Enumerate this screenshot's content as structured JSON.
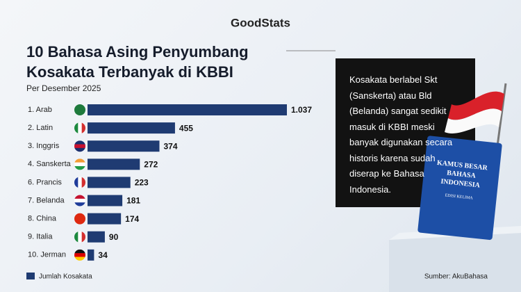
{
  "brand": "GoodStats",
  "chart_data": {
    "type": "hbar",
    "title": "10 Bahasa Asing Penyumbang Kosakata Terbanyak di KBBI",
    "subtitle": "Per Desember 2025",
    "categories": [
      "1. Arab",
      "2. Latin",
      "3. Inggris",
      "4. Sanskerta",
      "6. Prancis",
      "7. Belanda",
      "8. China",
      "9. Italia",
      "10. Jerman"
    ],
    "series": [
      {
        "name": "Jumlah Kosakata",
        "color": "#1f3b72",
        "values": [
          1037,
          455,
          374,
          272,
          223,
          181,
          174,
          90,
          34
        ],
        "value_labels": [
          "1.037",
          "455",
          "374",
          "272",
          "223",
          "181",
          "174",
          "90",
          "34"
        ]
      }
    ],
    "source": "Sumber: AkuBahasa"
  },
  "callout": "Kosakata berlabel Skt (Sanskerta) atau Bld (Belanda) sangat sedikit masuk di KBBI meski banyak digunakan secara historis karena sudah diserap ke Bahasa Indonesia.",
  "book": {
    "title_lines": [
      "KAMUS BESAR",
      "BAHASA",
      "INDONESIA"
    ],
    "edition": "EDISI KELIMA"
  }
}
